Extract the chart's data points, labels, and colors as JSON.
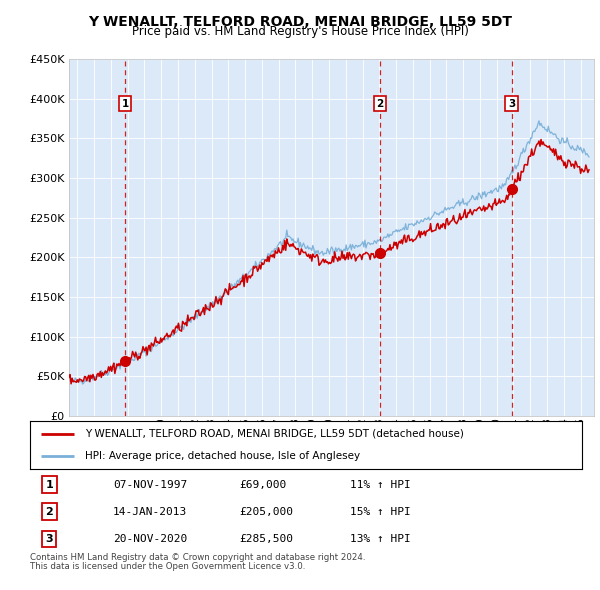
{
  "title": "Y WENALLT, TELFORD ROAD, MENAI BRIDGE, LL59 5DT",
  "subtitle": "Price paid vs. HM Land Registry's House Price Index (HPI)",
  "legend_line1": "Y WENALLT, TELFORD ROAD, MENAI BRIDGE, LL59 5DT (detached house)",
  "legend_line2": "HPI: Average price, detached house, Isle of Anglesey",
  "footnote1": "Contains HM Land Registry data © Crown copyright and database right 2024.",
  "footnote2": "This data is licensed under the Open Government Licence v3.0.",
  "transactions": [
    {
      "num": 1,
      "date": "07-NOV-1997",
      "price": "£69,000",
      "hpi_pct": "11% ↑ HPI",
      "year_x": 1997.85,
      "price_y": 69000
    },
    {
      "num": 2,
      "date": "14-JAN-2013",
      "price": "£205,000",
      "hpi_pct": "15% ↑ HPI",
      "year_x": 2013.04,
      "price_y": 205000
    },
    {
      "num": 3,
      "date": "20-NOV-2020",
      "price": "£285,500",
      "hpi_pct": "13% ↑ HPI",
      "year_x": 2020.89,
      "price_y": 285500
    }
  ],
  "ylim": [
    0,
    450000
  ],
  "yticks": [
    0,
    50000,
    100000,
    150000,
    200000,
    250000,
    300000,
    350000,
    400000,
    450000
  ],
  "xlim_left": 1994.5,
  "xlim_right": 2025.8,
  "background_color": "#dce9f8",
  "grid_color": "#ffffff",
  "house_line_color": "#cc0000",
  "hpi_line_color": "#7ab0d8",
  "dashed_line_color": "#cc0000",
  "marker_color": "#cc0000",
  "transaction_box_color": "#cc0000",
  "fig_bg": "#ffffff"
}
